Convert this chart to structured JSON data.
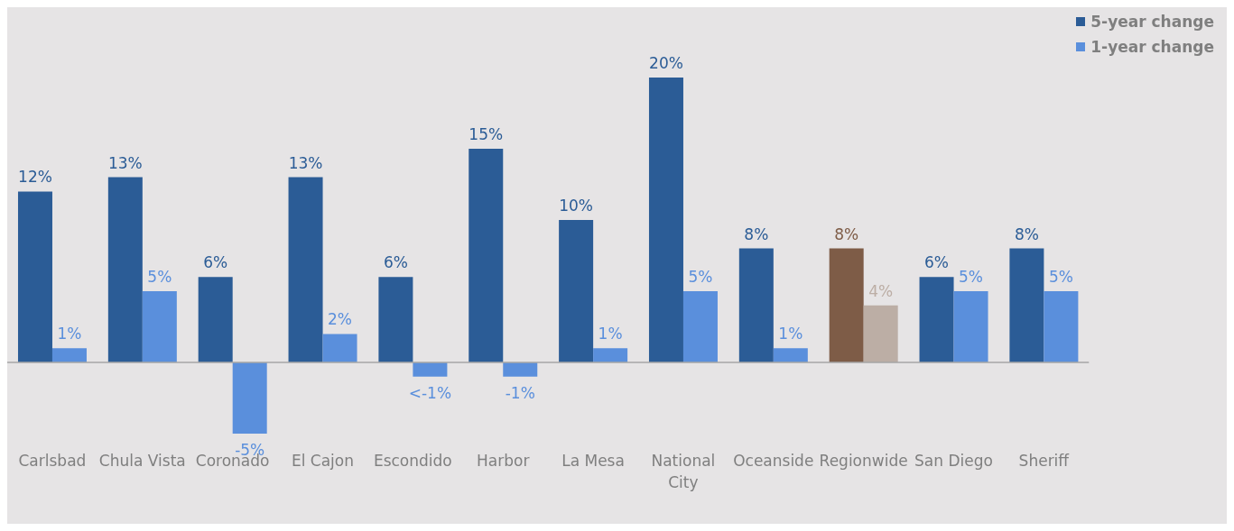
{
  "chart_data": {
    "type": "bar",
    "categories": [
      "Carlsbad",
      "Chula Vista",
      "Coronado",
      "El Cajon",
      "Escondido",
      "Harbor",
      "La Mesa",
      "National City",
      "Oceanside",
      "Regionwide",
      "San Diego",
      "Sheriff"
    ],
    "series": [
      {
        "name": "5-year change",
        "color": "#2b5c96",
        "colors": [
          "#2b5c96",
          "#2b5c96",
          "#2b5c96",
          "#2b5c96",
          "#2b5c96",
          "#2b5c96",
          "#2b5c96",
          "#2b5c96",
          "#2b5c96",
          "#7e5c47",
          "#2b5c96",
          "#2b5c96"
        ],
        "values": [
          12,
          13,
          6,
          13,
          6,
          15,
          10,
          20,
          8,
          8,
          6,
          8
        ],
        "value_labels": [
          "12%",
          "13%",
          "6%",
          "13%",
          "6%",
          "15%",
          "10%",
          "20%",
          "8%",
          "8%",
          "6%",
          "8%"
        ]
      },
      {
        "name": "1-year change",
        "color": "#5a8fdc",
        "colors": [
          "#5a8fdc",
          "#5a8fdc",
          "#5a8fdc",
          "#5a8fdc",
          "#5a8fdc",
          "#5a8fdc",
          "#5a8fdc",
          "#5a8fdc",
          "#5a8fdc",
          "#bcaea5",
          "#5a8fdc",
          "#5a8fdc"
        ],
        "values": [
          1,
          5,
          -5,
          2,
          -1,
          -1,
          1,
          5,
          1,
          4,
          5,
          5
        ],
        "value_labels": [
          "1%",
          "5%",
          "-5%",
          "2%",
          "<-1%",
          "-1%",
          "1%",
          "5%",
          "1%",
          "4%",
          "5%",
          "5%"
        ]
      }
    ],
    "legend": "top right",
    "grid": false
  }
}
